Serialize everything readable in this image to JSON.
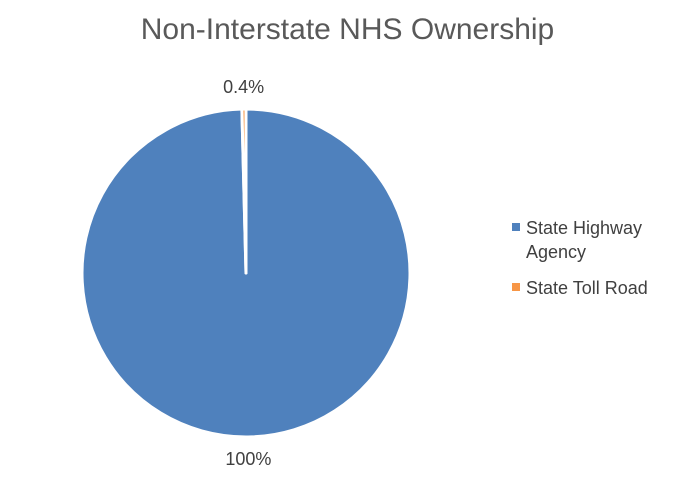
{
  "chart_data": {
    "type": "pie",
    "title": "Non-Interstate NHS Ownership",
    "legend_position": "right",
    "series": [
      {
        "name": "State Highway Agency",
        "value": 99.6,
        "label": "100%",
        "color": "#4F81BD"
      },
      {
        "name": "State Toll Road",
        "value": 0.4,
        "label": "0.4%",
        "color": "#F79646"
      }
    ]
  }
}
